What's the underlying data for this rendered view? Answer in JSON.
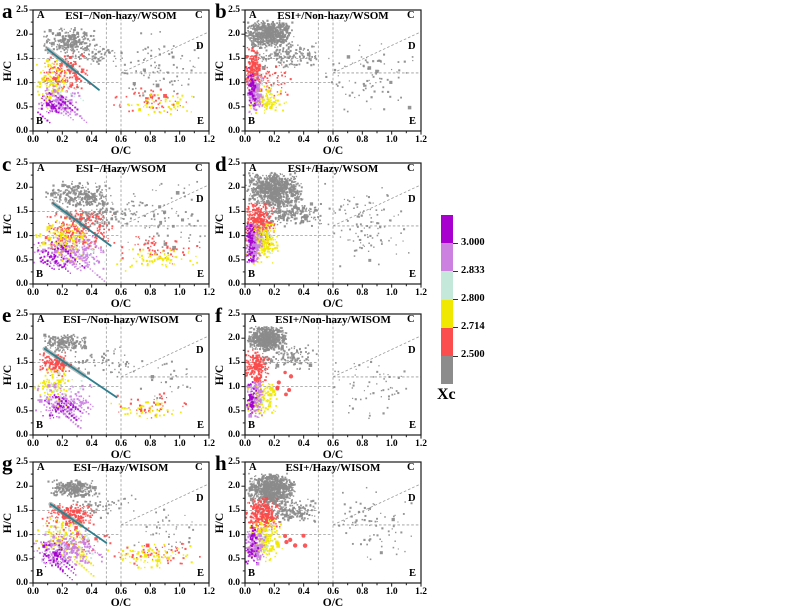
{
  "figure": {
    "xlabel": "O/C",
    "ylabel": "H/C",
    "x_ticks": [
      "0.0",
      "0.2",
      "0.4",
      "0.6",
      "0.8",
      "1.0",
      "1.2"
    ],
    "y_ticks": [
      "0.0",
      "0.5",
      "1.0",
      "1.5",
      "2.0",
      "2.5"
    ],
    "region_labels": [
      "A",
      "B",
      "C",
      "D",
      "E"
    ],
    "guide_color": "#9a9a9a",
    "fit_line_color": "#2e7f8e",
    "fit_band_color": "#777777",
    "point_colors": {
      "gray": "#8b8b8b",
      "red": "#fb4b4b",
      "yellow": "#f0e800",
      "cyan": "#c0e8da",
      "violet": "#cb7fe3",
      "purple": "#a300cf"
    },
    "colorbar": {
      "label": "Xc",
      "tick_labels": [
        "3.000",
        "2.833",
        "2.800",
        "2.714",
        "2.500"
      ],
      "segment_colors": [
        "#a800cf",
        "#cc80e0",
        "#c4e9da",
        "#f0e800",
        "#fb4d4d",
        "#8c8c8c"
      ]
    }
  },
  "chart_data": {
    "type": "scatter",
    "x_axis": {
      "label": "O/C",
      "range": [
        0,
        1.2
      ],
      "tick_step": 0.2,
      "minor_step": 0.1
    },
    "y_axis": {
      "label": "H/C",
      "range": [
        0,
        2.5
      ],
      "tick_step": 0.5,
      "minor_step": 0.25
    },
    "color_variable": "Xc",
    "color_bins": [
      {
        "color": "purple",
        "range": "> 3.000"
      },
      {
        "color": "violet",
        "range": "2.833 - 3.000"
      },
      {
        "color": "cyan",
        "range": "2.800 - 2.833"
      },
      {
        "color": "yellow",
        "range": "2.714 - 2.800"
      },
      {
        "color": "red",
        "range": "2.500 - 2.714"
      },
      {
        "color": "gray",
        "range": "< 2.500"
      }
    ],
    "guides": {
      "verticals": [
        0.5,
        0.6
      ],
      "horizontals": [
        {
          "y": 1.5,
          "x1": 0,
          "x2": 0.5
        },
        {
          "y": 1.0,
          "x1": 0,
          "x2": 0.6
        },
        {
          "y": 1.2,
          "x1": 0.6,
          "x2": 1.2
        }
      ],
      "diagonal": {
        "x1": 0.6,
        "y1": 1.2,
        "x2": 1.2,
        "y2": 2.05
      }
    },
    "panels": [
      {
        "id": "a",
        "letter": "a",
        "title": "ESI−/Non-hazy/WSOM",
        "seed": 11,
        "fit_line": {
          "x1": 0.1,
          "y1": 1.69,
          "x2": 0.45,
          "y2": 0.85
        },
        "clusters": [
          {
            "color": "gray",
            "n": 260,
            "cx": 0.25,
            "cy": 1.85,
            "rx": 0.2,
            "ry": 0.33
          },
          {
            "color": "gray",
            "n": 70,
            "cx": 0.45,
            "cy": 1.55,
            "rx": 0.18,
            "ry": 0.25
          },
          {
            "color": "gray",
            "n": 90,
            "cx": 0.85,
            "cy": 1.3,
            "rx": 0.33,
            "ry": 0.85
          },
          {
            "color": "red",
            "n": 160,
            "cx": 0.22,
            "cy": 1.2,
            "rx": 0.2,
            "ry": 0.42
          },
          {
            "color": "red",
            "n": 55,
            "cx": 0.8,
            "cy": 0.6,
            "rx": 0.28,
            "ry": 0.3
          },
          {
            "color": "yellow",
            "n": 110,
            "cx": 0.13,
            "cy": 1.0,
            "rx": 0.13,
            "ry": 0.55
          },
          {
            "color": "yellow",
            "n": 50,
            "cx": 0.85,
            "cy": 0.55,
            "rx": 0.28,
            "ry": 0.25
          },
          {
            "color": "cyan",
            "n": 28,
            "cx": 0.2,
            "cy": 0.8,
            "rx": 0.18,
            "ry": 0.4
          },
          {
            "color": "violet",
            "n": 160,
            "cx": 0.18,
            "cy": 0.62,
            "rx": 0.17,
            "ry": 0.33,
            "streaks": 8
          },
          {
            "color": "purple",
            "n": 60,
            "cx": 0.13,
            "cy": 0.55,
            "rx": 0.11,
            "ry": 0.28,
            "streaks": 4
          }
        ]
      },
      {
        "id": "b",
        "letter": "b",
        "title": "ESI+/Non-hazy/WSOM",
        "seed": 22,
        "fit_line": null,
        "clusters": [
          {
            "color": "gray",
            "n": 650,
            "cx": 0.17,
            "cy": 2.0,
            "rx": 0.17,
            "ry": 0.3
          },
          {
            "color": "gray",
            "n": 160,
            "cx": 0.3,
            "cy": 1.55,
            "rx": 0.25,
            "ry": 0.28
          },
          {
            "color": "gray",
            "n": 90,
            "cx": 0.85,
            "cy": 1.1,
            "rx": 0.33,
            "ry": 0.85
          },
          {
            "color": "red",
            "n": 210,
            "cx": 0.06,
            "cy": 1.25,
            "rx": 0.06,
            "ry": 0.5
          },
          {
            "color": "red",
            "n": 55,
            "cx": 0.2,
            "cy": 1.05,
            "rx": 0.14,
            "ry": 0.38
          },
          {
            "color": "yellow",
            "n": 95,
            "cx": 0.15,
            "cy": 0.65,
            "rx": 0.14,
            "ry": 0.3
          },
          {
            "color": "cyan",
            "n": 22,
            "cx": 0.12,
            "cy": 0.85,
            "rx": 0.1,
            "ry": 0.4
          },
          {
            "color": "violet",
            "n": 150,
            "cx": 0.07,
            "cy": 0.75,
            "rx": 0.06,
            "ry": 0.42
          },
          {
            "color": "purple",
            "n": 55,
            "cx": 0.05,
            "cy": 0.9,
            "rx": 0.04,
            "ry": 0.5
          }
        ]
      },
      {
        "id": "c",
        "letter": "c",
        "title": "ESI−/Hazy/WSOM",
        "seed": 33,
        "fit_line": {
          "x1": 0.14,
          "y1": 1.66,
          "x2": 0.53,
          "y2": 0.79
        },
        "clusters": [
          {
            "color": "gray",
            "n": 270,
            "cx": 0.3,
            "cy": 1.85,
            "rx": 0.24,
            "ry": 0.28
          },
          {
            "color": "gray",
            "n": 170,
            "cx": 0.45,
            "cy": 1.45,
            "rx": 0.33,
            "ry": 0.4
          },
          {
            "color": "gray",
            "n": 85,
            "cx": 0.9,
            "cy": 1.35,
            "rx": 0.3,
            "ry": 0.85
          },
          {
            "color": "red",
            "n": 250,
            "cx": 0.3,
            "cy": 1.1,
            "rx": 0.27,
            "ry": 0.48
          },
          {
            "color": "red",
            "n": 60,
            "cx": 0.85,
            "cy": 0.7,
            "rx": 0.3,
            "ry": 0.33
          },
          {
            "color": "yellow",
            "n": 140,
            "cx": 0.2,
            "cy": 0.9,
            "rx": 0.19,
            "ry": 0.58
          },
          {
            "color": "yellow",
            "n": 70,
            "cx": 0.85,
            "cy": 0.5,
            "rx": 0.3,
            "ry": 0.25
          },
          {
            "color": "cyan",
            "n": 42,
            "cx": 0.3,
            "cy": 0.8,
            "rx": 0.24,
            "ry": 0.45
          },
          {
            "color": "violet",
            "n": 210,
            "cx": 0.25,
            "cy": 0.65,
            "rx": 0.26,
            "ry": 0.36,
            "streaks": 10
          },
          {
            "color": "purple",
            "n": 85,
            "cx": 0.15,
            "cy": 0.6,
            "rx": 0.12,
            "ry": 0.33,
            "streaks": 5
          }
        ]
      },
      {
        "id": "d",
        "letter": "d",
        "title": "ESI+/Hazy/WSOM",
        "seed": 44,
        "fit_line": null,
        "clusters": [
          {
            "color": "gray",
            "n": 850,
            "cx": 0.2,
            "cy": 1.95,
            "rx": 0.2,
            "ry": 0.36
          },
          {
            "color": "gray",
            "n": 240,
            "cx": 0.3,
            "cy": 1.45,
            "rx": 0.24,
            "ry": 0.3
          },
          {
            "color": "gray",
            "n": 110,
            "cx": 0.85,
            "cy": 1.2,
            "rx": 0.33,
            "ry": 0.9
          },
          {
            "color": "red",
            "n": 330,
            "cx": 0.1,
            "cy": 1.25,
            "rx": 0.11,
            "ry": 0.48
          },
          {
            "color": "yellow",
            "n": 210,
            "cx": 0.12,
            "cy": 0.85,
            "rx": 0.12,
            "ry": 0.45
          },
          {
            "color": "cyan",
            "n": 32,
            "cx": 0.1,
            "cy": 0.9,
            "rx": 0.09,
            "ry": 0.45
          },
          {
            "color": "violet",
            "n": 170,
            "cx": 0.06,
            "cy": 0.8,
            "rx": 0.06,
            "ry": 0.45
          },
          {
            "color": "purple",
            "n": 65,
            "cx": 0.04,
            "cy": 0.85,
            "rx": 0.035,
            "ry": 0.5
          }
        ]
      },
      {
        "id": "e",
        "letter": "e",
        "title": "ESI−/Non-hazy/WISOM",
        "seed": 55,
        "fit_line": {
          "x1": 0.08,
          "y1": 1.78,
          "x2": 0.57,
          "y2": 0.78
        },
        "clusters": [
          {
            "color": "gray",
            "n": 190,
            "cx": 0.22,
            "cy": 1.9,
            "rx": 0.16,
            "ry": 0.2
          },
          {
            "color": "gray",
            "n": 55,
            "cx": 0.5,
            "cy": 1.5,
            "rx": 0.28,
            "ry": 0.35
          },
          {
            "color": "gray",
            "n": 30,
            "cx": 0.9,
            "cy": 1.15,
            "rx": 0.28,
            "ry": 0.55
          },
          {
            "color": "red",
            "n": 135,
            "cx": 0.15,
            "cy": 1.45,
            "rx": 0.12,
            "ry": 0.28
          },
          {
            "color": "red",
            "n": 45,
            "cx": 0.8,
            "cy": 0.6,
            "rx": 0.28,
            "ry": 0.3
          },
          {
            "color": "yellow",
            "n": 105,
            "cx": 0.15,
            "cy": 1.0,
            "rx": 0.14,
            "ry": 0.48
          },
          {
            "color": "yellow",
            "n": 45,
            "cx": 0.8,
            "cy": 0.5,
            "rx": 0.28,
            "ry": 0.25
          },
          {
            "color": "cyan",
            "n": 28,
            "cx": 0.2,
            "cy": 0.9,
            "rx": 0.17,
            "ry": 0.48
          },
          {
            "color": "violet",
            "n": 190,
            "cx": 0.22,
            "cy": 0.7,
            "rx": 0.21,
            "ry": 0.38,
            "streaks": 9
          },
          {
            "color": "purple",
            "n": 55,
            "cx": 0.15,
            "cy": 0.6,
            "rx": 0.12,
            "ry": 0.3,
            "streaks": 4
          }
        ]
      },
      {
        "id": "f",
        "letter": "f",
        "title": "ESI+/Non-hazy/WISOM",
        "seed": 66,
        "fit_line": null,
        "clusters": [
          {
            "color": "gray",
            "n": 600,
            "cx": 0.15,
            "cy": 2.0,
            "rx": 0.14,
            "ry": 0.26
          },
          {
            "color": "gray",
            "n": 120,
            "cx": 0.3,
            "cy": 1.6,
            "rx": 0.24,
            "ry": 0.28
          },
          {
            "color": "gray",
            "n": 60,
            "cx": 0.85,
            "cy": 1.0,
            "rx": 0.33,
            "ry": 0.75
          },
          {
            "color": "red",
            "n": 190,
            "cx": 0.08,
            "cy": 1.4,
            "rx": 0.09,
            "ry": 0.38
          },
          {
            "color": "red",
            "n": 7,
            "cx": 0.28,
            "cy": 1.0,
            "rx": 0.11,
            "ry": 0.33,
            "size": 3.4
          },
          {
            "color": "yellow",
            "n": 115,
            "cx": 0.12,
            "cy": 0.72,
            "rx": 0.12,
            "ry": 0.38
          },
          {
            "color": "cyan",
            "n": 18,
            "cx": 0.1,
            "cy": 0.9,
            "rx": 0.09,
            "ry": 0.38
          },
          {
            "color": "violet",
            "n": 125,
            "cx": 0.07,
            "cy": 0.72,
            "rx": 0.06,
            "ry": 0.42
          },
          {
            "color": "purple",
            "n": 42,
            "cx": 0.05,
            "cy": 0.8,
            "rx": 0.04,
            "ry": 0.45
          }
        ]
      },
      {
        "id": "g",
        "letter": "g",
        "title": "ESI−/Hazy/WISOM",
        "seed": 77,
        "fit_line": {
          "x1": 0.12,
          "y1": 1.63,
          "x2": 0.5,
          "y2": 0.83
        },
        "clusters": [
          {
            "color": "gray",
            "n": 250,
            "cx": 0.27,
            "cy": 1.95,
            "rx": 0.17,
            "ry": 0.18
          },
          {
            "color": "gray",
            "n": 60,
            "cx": 0.45,
            "cy": 1.6,
            "rx": 0.28,
            "ry": 0.28
          },
          {
            "color": "gray",
            "n": 40,
            "cx": 0.9,
            "cy": 1.1,
            "rx": 0.28,
            "ry": 0.5
          },
          {
            "color": "red",
            "n": 190,
            "cx": 0.25,
            "cy": 1.4,
            "rx": 0.19,
            "ry": 0.28
          },
          {
            "color": "red",
            "n": 60,
            "cx": 0.3,
            "cy": 0.9,
            "rx": 0.24,
            "ry": 0.3
          },
          {
            "color": "red",
            "n": 50,
            "cx": 0.85,
            "cy": 0.6,
            "rx": 0.3,
            "ry": 0.3
          },
          {
            "color": "yellow",
            "n": 150,
            "cx": 0.2,
            "cy": 0.9,
            "rx": 0.19,
            "ry": 0.48,
            "streaks": 6
          },
          {
            "color": "yellow",
            "n": 80,
            "cx": 0.8,
            "cy": 0.55,
            "rx": 0.3,
            "ry": 0.28
          },
          {
            "color": "cyan",
            "n": 55,
            "cx": 0.25,
            "cy": 0.75,
            "rx": 0.21,
            "ry": 0.45
          },
          {
            "color": "violet",
            "n": 230,
            "cx": 0.22,
            "cy": 0.7,
            "rx": 0.26,
            "ry": 0.38,
            "streaks": 10
          },
          {
            "color": "purple",
            "n": 75,
            "cx": 0.12,
            "cy": 0.6,
            "rx": 0.1,
            "ry": 0.3,
            "streaks": 4
          }
        ]
      },
      {
        "id": "h",
        "letter": "h",
        "title": "ESI+/Hazy/WISOM",
        "seed": 88,
        "fit_line": null,
        "clusters": [
          {
            "color": "gray",
            "n": 800,
            "cx": 0.18,
            "cy": 1.95,
            "rx": 0.17,
            "ry": 0.33
          },
          {
            "color": "gray",
            "n": 190,
            "cx": 0.3,
            "cy": 1.5,
            "rx": 0.24,
            "ry": 0.28
          },
          {
            "color": "gray",
            "n": 80,
            "cx": 0.85,
            "cy": 1.2,
            "rx": 0.33,
            "ry": 0.85
          },
          {
            "color": "red",
            "n": 280,
            "cx": 0.12,
            "cy": 1.4,
            "rx": 0.12,
            "ry": 0.38
          },
          {
            "color": "red",
            "n": 6,
            "cx": 0.3,
            "cy": 0.9,
            "rx": 0.14,
            "ry": 0.28,
            "size": 3.4
          },
          {
            "color": "yellow",
            "n": 190,
            "cx": 0.13,
            "cy": 0.9,
            "rx": 0.13,
            "ry": 0.48
          },
          {
            "color": "cyan",
            "n": 26,
            "cx": 0.12,
            "cy": 0.85,
            "rx": 0.1,
            "ry": 0.4
          },
          {
            "color": "violet",
            "n": 140,
            "cx": 0.07,
            "cy": 0.75,
            "rx": 0.07,
            "ry": 0.38
          },
          {
            "color": "purple",
            "n": 50,
            "cx": 0.05,
            "cy": 0.8,
            "rx": 0.045,
            "ry": 0.45
          }
        ]
      }
    ]
  }
}
